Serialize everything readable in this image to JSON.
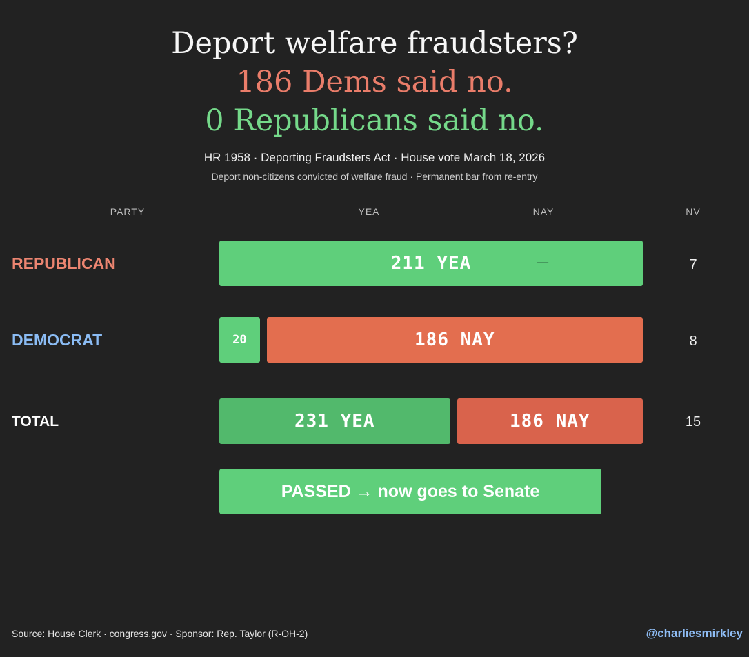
{
  "header": {
    "title_line_1": "Deport welfare fraudsters?",
    "title_line_2": "186 Dems said no.",
    "title_line_3": "0 Republicans said no.",
    "subtitle": "HR 1958 · Deporting Fraudsters Act · House vote March 18, 2026",
    "description": "Deport non-citizens convicted of welfare fraud · Permanent bar from re-entry"
  },
  "columns": {
    "party": "PARTY",
    "yea": "YEA",
    "nay": "NAY",
    "nv": "NV"
  },
  "chart_data": {
    "type": "bar",
    "orientation": "horizontal",
    "stacked": true,
    "categories": [
      "REPUBLICAN",
      "DEMOCRAT",
      "TOTAL"
    ],
    "series": [
      {
        "name": "YEA",
        "values": [
          211,
          20,
          231
        ]
      },
      {
        "name": "NAY",
        "values": [
          0,
          186,
          186
        ]
      },
      {
        "name": "NV",
        "values": [
          7,
          8,
          15
        ]
      }
    ]
  },
  "rows": [
    {
      "party": "REPUBLICAN",
      "yea_label": "211 YEA",
      "nay_label": "—",
      "nv": "7"
    },
    {
      "party": "DEMOCRAT",
      "yea_label": "20",
      "nay_label": "186 NAY",
      "nv": "8"
    },
    {
      "party": "TOTAL",
      "yea_label": "231 YEA",
      "nay_label": "186 NAY",
      "nv": "15"
    }
  ],
  "result": {
    "label": "PASSED → now goes to Senate"
  },
  "footer": {
    "source": "Source: House Clerk · congress.gov · Sponsor: Rep. Taylor (R-OH-2)",
    "handle": "@charliesmirkley"
  },
  "colors": {
    "background": "#222222",
    "yea": "#5fcf7b",
    "nay": "#e36e4f",
    "republican": "#ec8571",
    "democrat": "#8bbcf4",
    "handle": "#8fbdf5"
  }
}
